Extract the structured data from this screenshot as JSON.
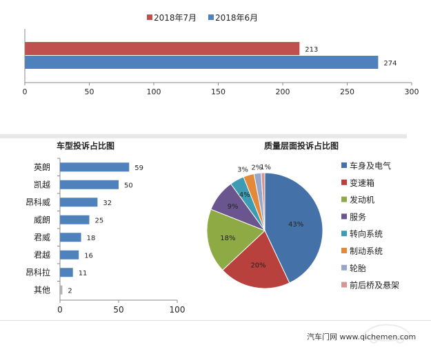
{
  "chart_data": [
    {
      "type": "bar",
      "orientation": "horizontal",
      "categories": [
        ""
      ],
      "series": [
        {
          "name": "2018年7月",
          "values": [
            213
          ],
          "color": "#c0504d"
        },
        {
          "name": "2018年6月",
          "values": [
            274
          ],
          "color": "#4f81bd"
        }
      ],
      "xlim": [
        0,
        300
      ],
      "xticks": [
        0,
        50,
        100,
        150,
        200,
        250,
        300
      ],
      "legend": "top",
      "grid": false
    },
    {
      "type": "bar",
      "orientation": "horizontal",
      "title": "车型投诉占比图",
      "categories": [
        "英朗",
        "凯越",
        "昂科威",
        "威朗",
        "君威",
        "君越",
        "昂科拉",
        "其他"
      ],
      "values": [
        59,
        50,
        32,
        25,
        18,
        16,
        11,
        2
      ],
      "color": "#4f81bd",
      "xlim": [
        0,
        100
      ],
      "xticks": [
        0,
        50,
        100
      ],
      "grid": false
    },
    {
      "type": "pie",
      "title": "质量层面投诉占比图",
      "labels": [
        "车身及电气",
        "变速箱",
        "发动机",
        "服务",
        "转向系统",
        "制动系统",
        "轮胎",
        "前后桥及悬架"
      ],
      "values": [
        43,
        20,
        18,
        9,
        4,
        3,
        2,
        1
      ],
      "value_labels": [
        "43%",
        "20%",
        "18%",
        "9%",
        "4%",
        "3%",
        "2%",
        "1%"
      ],
      "colors": [
        "#4472a8",
        "#b8413e",
        "#8eaa45",
        "#6b558e",
        "#3d9bb3",
        "#e3893c",
        "#95a8cc",
        "#d99594"
      ],
      "legend": "right"
    }
  ],
  "footer": {
    "text": "汽车门网 www.qichemen.com"
  }
}
